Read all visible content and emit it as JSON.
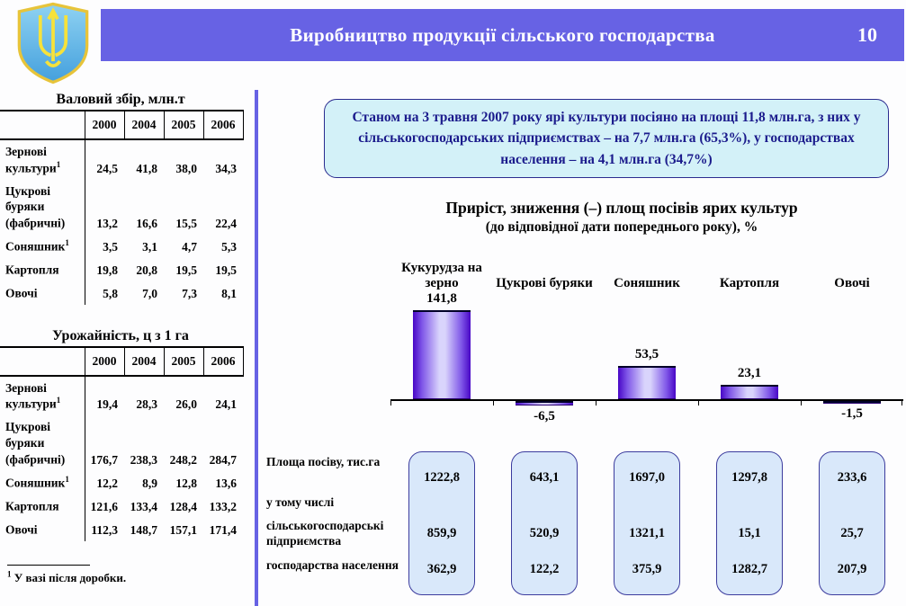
{
  "header": {
    "title": "Виробництво продукції сільського господарства",
    "page_number": "10",
    "emblem": "ukraine-trident-coat-of-arms"
  },
  "colors": {
    "header_bar": "#6762e4",
    "info_box_bg": "#d3f1f8",
    "info_box_border": "#2b2b8f",
    "info_text": "#1b1b8c",
    "area_box_bg": "#d9e8fa",
    "area_box_border": "#3c3c9e",
    "bar_edge": "#4806c6",
    "bar_center": "#d9d4fc"
  },
  "tables": [
    {
      "title": "Валовий збір, млн.т",
      "years": [
        "2000",
        "2004",
        "2005",
        "2006"
      ],
      "rows": [
        {
          "label": "Зернові культури",
          "sup": "1",
          "values": [
            "24,5",
            "41,8",
            "38,0",
            "34,3"
          ]
        },
        {
          "label": "Цукрові буряки (фабричні)",
          "sup": "",
          "values": [
            "13,2",
            "16,6",
            "15,5",
            "22,4"
          ]
        },
        {
          "label": "Соняшник",
          "sup": "1",
          "values": [
            "3,5",
            "3,1",
            "4,7",
            "5,3"
          ]
        },
        {
          "label": "Картопля",
          "sup": "",
          "values": [
            "19,8",
            "20,8",
            "19,5",
            "19,5"
          ]
        },
        {
          "label": "Овочі",
          "sup": "",
          "values": [
            "5,8",
            "7,0",
            "7,3",
            "8,1"
          ]
        }
      ]
    },
    {
      "title": "Урожайність, ц з 1 га",
      "years": [
        "2000",
        "2004",
        "2005",
        "2006"
      ],
      "rows": [
        {
          "label": "Зернові культури",
          "sup": "1",
          "values": [
            "19,4",
            "28,3",
            "26,0",
            "24,1"
          ]
        },
        {
          "label": "Цукрові буряки (фабричні)",
          "sup": "",
          "values": [
            "176,7",
            "238,3",
            "248,2",
            "284,7"
          ]
        },
        {
          "label": "Соняшник",
          "sup": "1",
          "values": [
            "12,2",
            "8,9",
            "12,8",
            "13,6"
          ]
        },
        {
          "label": "Картопля",
          "sup": "",
          "values": [
            "121,6",
            "133,4",
            "128,4",
            "133,2"
          ]
        },
        {
          "label": "Овочі",
          "sup": "",
          "values": [
            "112,3",
            "148,7",
            "157,1",
            "171,4"
          ]
        }
      ]
    }
  ],
  "footnote": {
    "sup": "1",
    "text": "У вазі після доробки."
  },
  "info_box": {
    "text": "Станом на 3 травня 2007 року ярі культури посіяно на площі 11,8 млн.га, з них у сільськогосподарських підприємствах – на 7,7 млн.га (65,3%), у господарствах населення – на 4,1 млн.га (34,7%)"
  },
  "chart_data": {
    "type": "bar",
    "title": "Приріст, зниження (–) площ посівів ярих культур",
    "subtitle": "(до відповідної дати попереднього року), %",
    "categories": [
      "Кукурудза на зерно",
      "Цукрові буряки",
      "Соняшник",
      "Картопля",
      "Овочі"
    ],
    "values": [
      141.8,
      -6.5,
      53.5,
      23.1,
      -1.5
    ],
    "value_labels": [
      "141,8",
      "-6,5",
      "53,5",
      "23,1",
      "-1,5"
    ],
    "xlabel": "",
    "ylabel": "",
    "ylim": [
      -20,
      160
    ],
    "grid": false,
    "legend": false,
    "baseline": 0
  },
  "area_section": {
    "row_labels": [
      "Площа посіву, тис.га",
      "у тому числі",
      "сільськогосподарські підприємства",
      "господарства населення"
    ],
    "boxes": [
      {
        "total": "1222,8",
        "enterprises": "859,9",
        "households": "362,9"
      },
      {
        "total": "643,1",
        "enterprises": "520,9",
        "households": "122,2"
      },
      {
        "total": "1697,0",
        "enterprises": "1321,1",
        "households": "375,9"
      },
      {
        "total": "1297,8",
        "enterprises": "15,1",
        "households": "1282,7"
      },
      {
        "total": "233,6",
        "enterprises": "25,7",
        "households": "207,9"
      }
    ]
  }
}
